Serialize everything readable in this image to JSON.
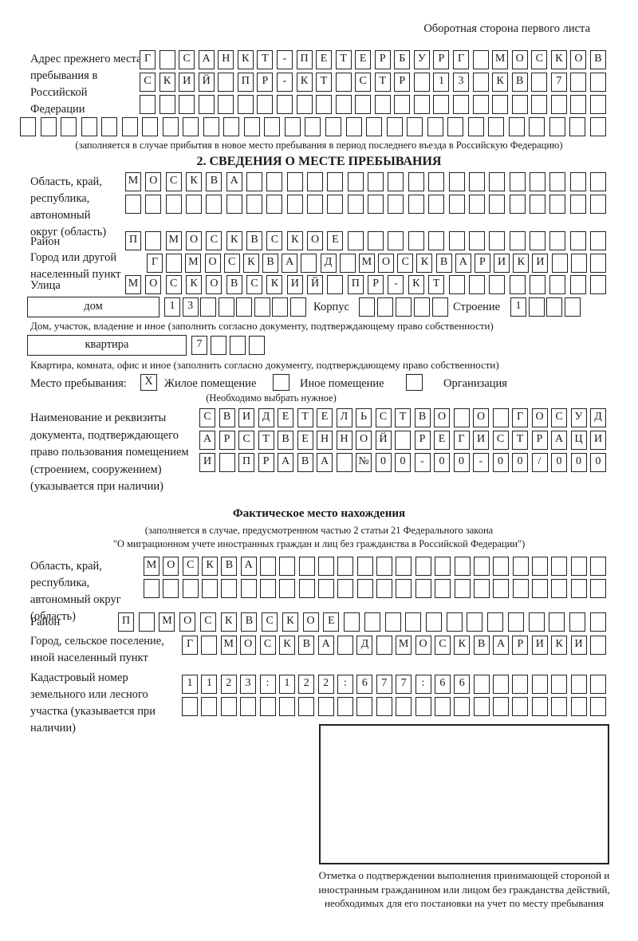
{
  "header_note": "Оборотная сторона первого листа",
  "section_prev": {
    "label": "Адрес прежнего места пребывания в Российской Федерации",
    "note": "(заполняется в случае прибытия в новое место пребывания в период последнего въезда в Российскую Федерацию)",
    "line1": {
      "text": "Г САНКТ-ПЕТЕРБУРГ МОСКОВ",
      "len": 24
    },
    "line2": {
      "text": "СКИЙ ПР-КТ СТР 13 КВ 7",
      "len": 24
    },
    "line3": {
      "text": "",
      "len": 24
    },
    "line4": {
      "text": "",
      "len": 29
    }
  },
  "section2": {
    "title": "2. СВЕДЕНИЯ О МЕСТЕ ПРЕБЫВАНИЯ",
    "oblast_label": "Область, край, республика, автономный округ (область)",
    "oblast_line1": {
      "text": "МОСКВА",
      "len": 24
    },
    "oblast_line2": {
      "text": "",
      "len": 24
    },
    "raion_label": "Район",
    "raion_line": {
      "text": "П МОСКВСКОЕ",
      "len": 24
    },
    "gorod_label": "Город или другой населенный пункт",
    "gorod_line": {
      "text": "Г МОСКВА Д МОСКВАРИКИ",
      "len": 24
    },
    "ulitsa_label": "Улица",
    "ulitsa_line": {
      "text": "МОСКОВСКИЙ ПР-КТ",
      "len": 24
    },
    "dom_box_label": "дом",
    "dom_cells": {
      "text": "13",
      "len": 8
    },
    "korpus_label": "Корпус",
    "korpus_cells": {
      "text": "",
      "len": 5
    },
    "stroenie_label": "Строение",
    "stroenie_cells": {
      "text": "1",
      "len": 4
    },
    "dom_note": "Дом, участок, владение и иное (заполнить согласно документу, подтверждающему право собственности)",
    "kvartira_box_label": "квартира",
    "kvartira_cells": {
      "text": "7",
      "len": 4
    },
    "kvartira_note": "Квартира, комната, офис и иное (заполнить согласно документу, подтверждающему право собственности)",
    "mesto_label": "Место пребывания:",
    "mesto_options": [
      {
        "label": "Жилое помещение",
        "checked": "X"
      },
      {
        "label": "Иное помещение",
        "checked": ""
      },
      {
        "label": "Организация",
        "checked": ""
      }
    ],
    "mesto_note": "(Необходимо выбрать нужное)",
    "doc_label": "Наименование и реквизиты документа, подтверждающего право пользования помещением (строением, сооружением) (указывается при наличии)",
    "doc_line1": {
      "text": "СВИДЕТЕЛЬСТВО О ГОСУД",
      "len": 21
    },
    "doc_line2": {
      "text": "АРСТВЕННОЙ РЕГИСТРАЦИ",
      "len": 21
    },
    "doc_line3": {
      "text": "И ПРАВА №00-00-00/000",
      "len": 21
    }
  },
  "section_fact": {
    "title": "Фактическое место нахождения",
    "note1": "(заполняется в случае, предусмотренном частью 2 статьи 21 Федерального закона",
    "note2": "\"О миграционном учете иностранных граждан и лиц без гражданства в Российской Федерации\")",
    "oblast_label": "Область, край, республика, автономный округ (область)",
    "oblast_line1": {
      "text": "МОСКВА",
      "len": 24
    },
    "oblast_line2": {
      "text": "",
      "len": 24
    },
    "raion_label": "Район",
    "raion_line": {
      "text": "П МОСКВСКОЕ",
      "len": 24
    },
    "gorod_label": "Город, сельское поселение, иной населенный пункт",
    "gorod_line": {
      "text": "Г МОСКВА Д МОСКВАРИКИ",
      "len": 22
    },
    "kadastr_label": "Кадастровый номер земельного или лесного участка (указывается при наличии)",
    "kadastr_line1": {
      "text": "1123:122:677:66",
      "len": 22
    },
    "kadastr_line2": {
      "text": "",
      "len": 22
    },
    "stamp_caption": "Отметка о подтверждении выполнения принимающей стороной и иностранным гражданином или лицом без гражданства действий, необходимых для его постановки на учет по месту пребывания"
  }
}
